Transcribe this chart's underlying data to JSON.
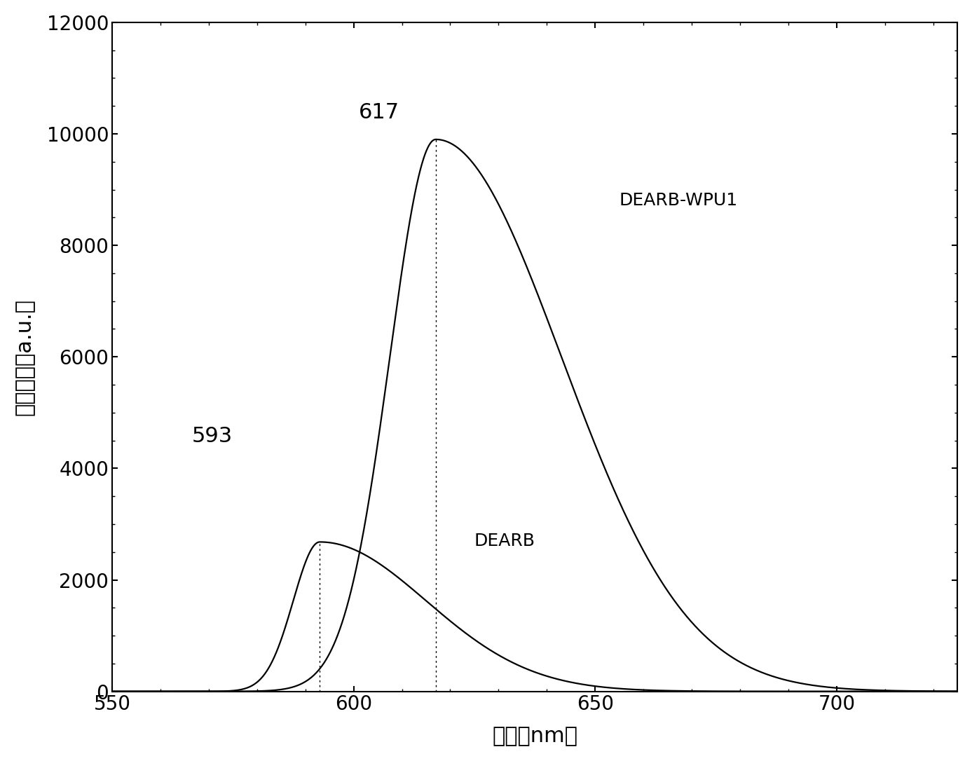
{
  "title": "",
  "xlabel": "波长（nm）",
  "ylabel": "荧光强度（a.u.）",
  "xlim": [
    550,
    725
  ],
  "ylim": [
    0,
    12000
  ],
  "xticks": [
    550,
    600,
    650,
    700
  ],
  "yticks": [
    0,
    2000,
    4000,
    6000,
    8000,
    10000,
    12000
  ],
  "peak1_x": 593,
  "peak1_y": 2680,
  "peak2_x": 617,
  "peak2_y": 9900,
  "label_dearb": "DEARB",
  "label_wpu": "DEARB-WPU1",
  "annotation1": "593",
  "annotation2": "617",
  "background_color": "#ffffff",
  "line_color": "#000000",
  "figwidth": 13.87,
  "figheight": 10.86,
  "dpi": 100
}
